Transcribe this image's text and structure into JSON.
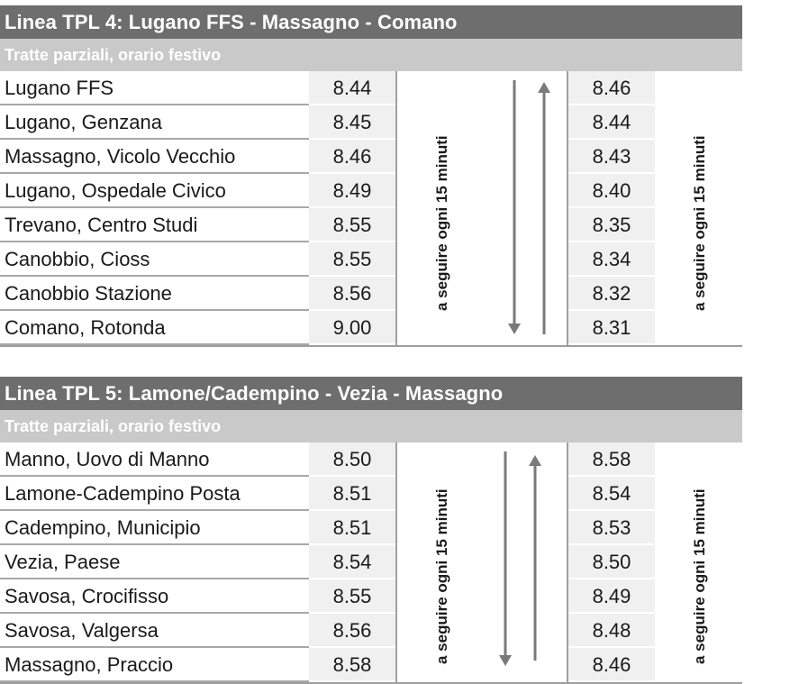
{
  "tables": [
    {
      "title": "Linea TPL 4: Lugano FFS - Massagno - Comano",
      "subtitle": "Tratte parziali, orario festivo",
      "note": "a seguire ogni 15 minuti",
      "rows": [
        {
          "stop": "Lugano FFS",
          "dep": "8.44",
          "ret": "8.46"
        },
        {
          "stop": "Lugano, Genzana",
          "dep": "8.45",
          "ret": "8.44"
        },
        {
          "stop": "Massagno, Vicolo Vecchio",
          "dep": "8.46",
          "ret": "8.43"
        },
        {
          "stop": "Lugano, Ospedale Civico",
          "dep": "8.49",
          "ret": "8.40"
        },
        {
          "stop": "Trevano, Centro Studi",
          "dep": "8.55",
          "ret": "8.35"
        },
        {
          "stop": "Canobbio, Cioss",
          "dep": "8.55",
          "ret": "8.34"
        },
        {
          "stop": "Canobbio Stazione",
          "dep": "8.56",
          "ret": "8.32"
        },
        {
          "stop": "Comano, Rotonda",
          "dep": "9.00",
          "ret": "8.31"
        }
      ]
    },
    {
      "title": "Linea TPL 5: Lamone/Cadempino - Vezia - Massagno",
      "subtitle": "Tratte parziali, orario festivo",
      "note": "a seguire ogni 15 minuti",
      "rows": [
        {
          "stop": "Manno, Uovo di Manno",
          "dep": "8.50",
          "ret": "8.58"
        },
        {
          "stop": "Lamone-Cadempino Posta",
          "dep": "8.51",
          "ret": "8.54"
        },
        {
          "stop": "Cadempino, Municipio",
          "dep": "8.51",
          "ret": "8.53"
        },
        {
          "stop": "Vezia, Paese",
          "dep": "8.54",
          "ret": "8.50"
        },
        {
          "stop": "Savosa, Crocifisso",
          "dep": "8.55",
          "ret": "8.49"
        },
        {
          "stop": "Savosa, Valgersa",
          "dep": "8.56",
          "ret": "8.48"
        },
        {
          "stop": "Massagno, Praccio",
          "dep": "8.58",
          "ret": "8.46"
        }
      ]
    }
  ],
  "colors": {
    "header_bg": "#6e6e6e",
    "subheader_bg": "#c9c9c9",
    "time_bg": "#f0f0f0",
    "arrow": "#7a7a7a"
  }
}
